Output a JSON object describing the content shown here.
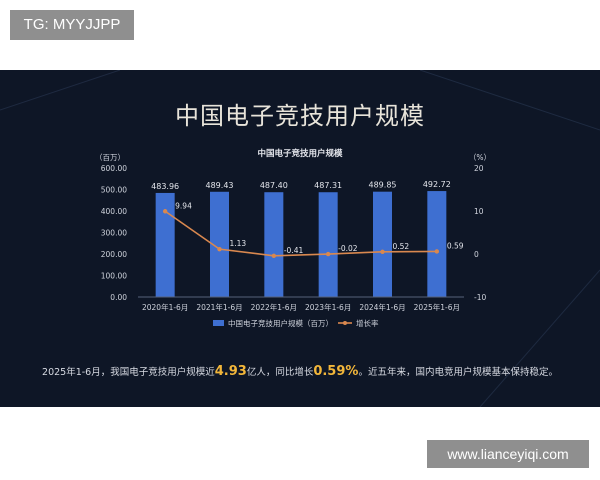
{
  "tag_label": "TG: MYYJJPP",
  "watermark": "www.lianceyiqi.com",
  "main_title": "中国电子竞技用户规模",
  "colors": {
    "panel_bg": "#0e1626",
    "bar": "#3e6fd1",
    "line": "#d9884f",
    "highlight": "#f2b63a",
    "text": "#d7dae2"
  },
  "caption": {
    "part1": "2025年1-6月，我国电子竞技用户规模近",
    "value1": "4.93",
    "part2": "亿人，同比增长",
    "value2": "0.59%",
    "part3": "。近五年来，国内电竞用户规模基本保持稳定。"
  },
  "chart_data": {
    "type": "bar",
    "title": "中国电子竞技用户规模",
    "categories": [
      "2020年1-6月",
      "2021年1-6月",
      "2022年1-6月",
      "2023年1-6月",
      "2024年1-6月",
      "2025年1-6月"
    ],
    "series": [
      {
        "name": "中国电子竞技用户规模（百万）",
        "type": "bar",
        "values": [
          483.96,
          489.43,
          487.4,
          487.31,
          489.85,
          492.72
        ],
        "labels": [
          "483.96",
          "489.43",
          "487.40",
          "487.31",
          "489.85",
          "492.72"
        ]
      },
      {
        "name": "增长率",
        "type": "line",
        "values": [
          9.94,
          1.13,
          -0.41,
          -0.02,
          0.52,
          0.59
        ],
        "labels": [
          "9.94",
          "1.13",
          "-0.41",
          "-0.02",
          "0.52",
          "0.59"
        ]
      }
    ],
    "y_left": {
      "unit": "（百万）",
      "ylim": [
        0,
        600
      ],
      "ticks": [
        "0.00",
        "100.00",
        "200.00",
        "300.00",
        "400.00",
        "500.00",
        "600.00"
      ]
    },
    "y_right": {
      "unit": "（%）",
      "ylim": [
        -10,
        20
      ],
      "ticks": [
        "-10",
        "0",
        "10",
        "20"
      ]
    },
    "grid": false,
    "legend_position": "bottom"
  }
}
